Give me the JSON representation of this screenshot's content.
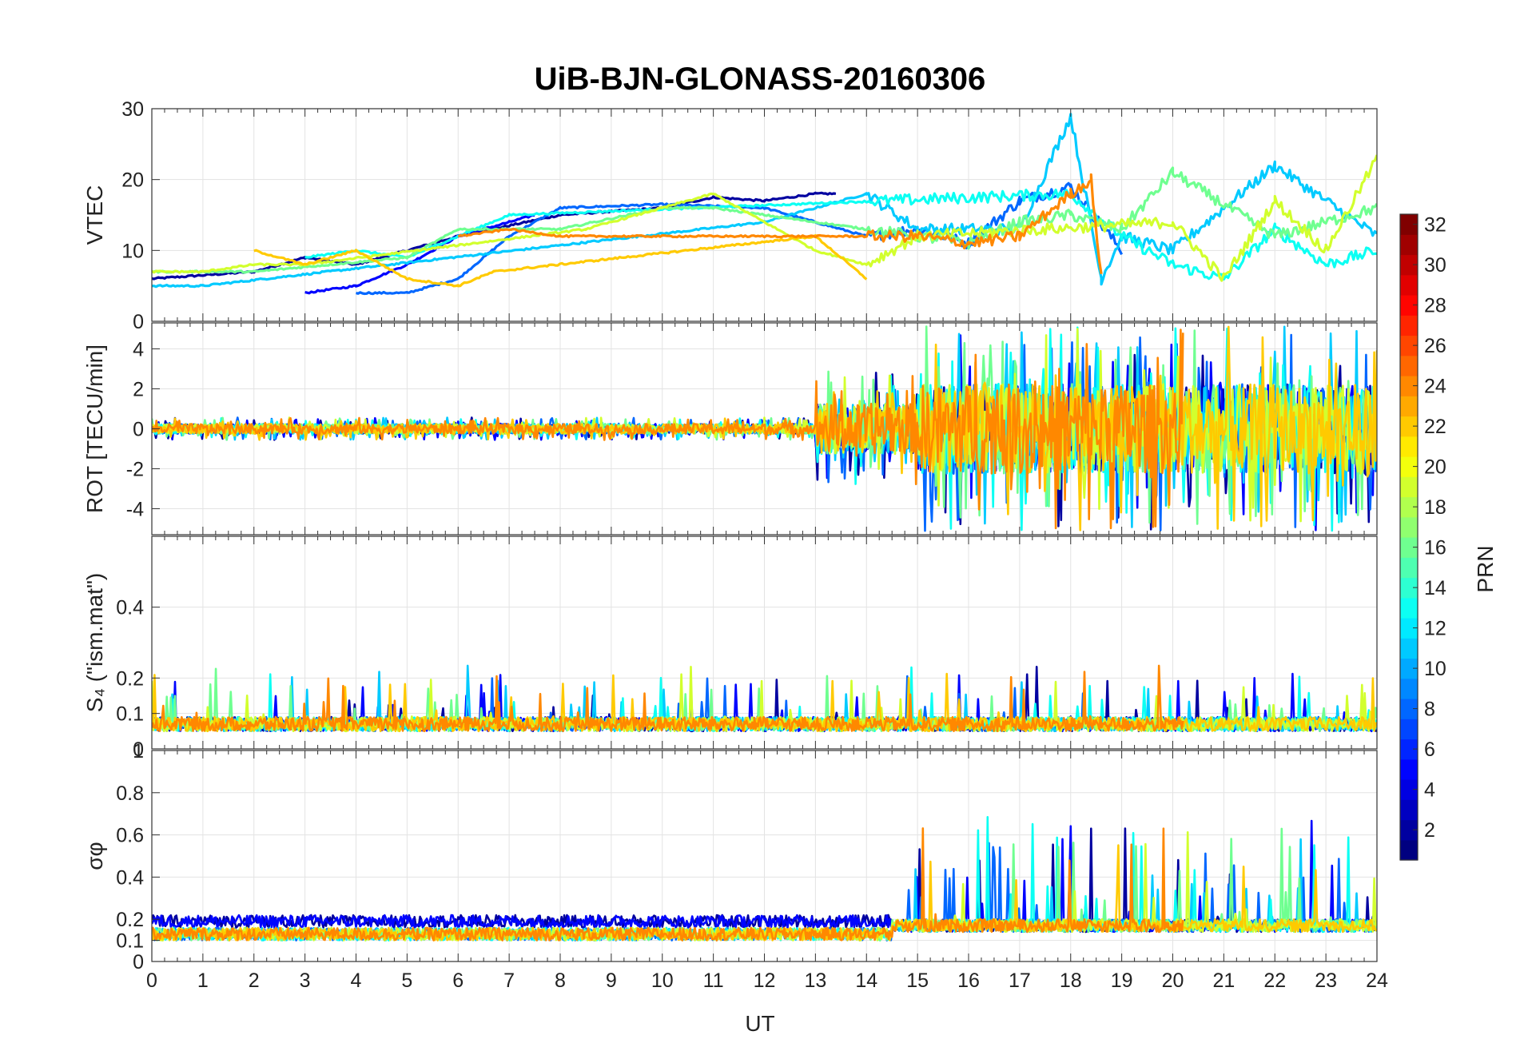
{
  "chart_data": {
    "type": "line",
    "title": "UiB-BJN-GLONASS-20160306",
    "xlabel": "UT",
    "xlim": [
      0,
      24
    ],
    "x_ticks": [
      "0",
      "1",
      "2",
      "3",
      "4",
      "5",
      "6",
      "7",
      "8",
      "9",
      "10",
      "11",
      "12",
      "13",
      "14",
      "15",
      "16",
      "17",
      "18",
      "19",
      "20",
      "21",
      "22",
      "23",
      "24"
    ],
    "grid": true,
    "colormap": "jet",
    "colorbar": {
      "label": "PRN",
      "range": [
        1,
        32
      ],
      "ticks": [
        "2",
        "4",
        "6",
        "8",
        "10",
        "12",
        "14",
        "16",
        "18",
        "20",
        "22",
        "24",
        "26",
        "28",
        "30",
        "32"
      ],
      "placement": "right"
    },
    "panels": [
      {
        "id": "vtec",
        "ylabel": "VTEC",
        "ylim": [
          0,
          30
        ],
        "y_ticks": [
          "0",
          "10",
          "20",
          "30"
        ],
        "description_of_series": "multiple PRN traces",
        "series": [
          {
            "prn": 2,
            "x": [
              0,
              2,
              3,
              4,
              6,
              8,
              10,
              11,
              12,
              13,
              13.4
            ],
            "y": [
              6,
              7,
              9,
              8,
              12,
              15,
              16,
              17.5,
              17,
              18,
              18
            ]
          },
          {
            "prn": 5,
            "x": [
              3,
              4,
              5,
              6,
              7,
              7.5
            ],
            "y": [
              4,
              5,
              8,
              12,
              14,
              15
            ]
          },
          {
            "prn": 8,
            "x": [
              4,
              5,
              6,
              7,
              8,
              10,
              12,
              14,
              15,
              16,
              17,
              18,
              19
            ],
            "y": [
              4,
              4,
              6,
              12,
              16,
              16.5,
              16,
              12,
              13,
              11,
              17,
              19,
              10
            ]
          },
          {
            "prn": 11,
            "x": [
              0,
              1,
              12,
              14,
              15,
              17,
              18,
              18.6,
              19,
              20,
              22,
              24
            ],
            "y": [
              5,
              5,
              14,
              18,
              13,
              13,
              29,
              6,
              12,
              10,
              22,
              12
            ]
          },
          {
            "prn": 13,
            "x": [
              3,
              4,
              5,
              6,
              7,
              18,
              19,
              20,
              21,
              22,
              23,
              24
            ],
            "y": [
              9,
              10,
              9,
              12,
              15,
              18,
              12,
              8,
              6,
              13,
              8,
              10
            ]
          },
          {
            "prn": 16,
            "x": [
              0,
              2,
              5,
              6,
              8,
              10,
              11,
              15,
              16,
              17,
              18,
              19,
              20,
              22,
              24
            ],
            "y": [
              7,
              7,
              9,
              13,
              13,
              16,
              16,
              12,
              11,
              14,
              15,
              13,
              21,
              12,
              16
            ]
          },
          {
            "prn": 19,
            "x": [
              0,
              1,
              2,
              3,
              8.5,
              10,
              11,
              12,
              13,
              14,
              15,
              20,
              21,
              22,
              23,
              24
            ],
            "y": [
              7,
              7,
              8,
              8,
              13,
              16,
              18,
              14,
              10,
              8,
              12,
              14,
              6,
              17,
              10,
              23
            ]
          },
          {
            "prn": 22,
            "x": [
              2,
              3,
              4,
              5,
              6,
              6.7,
              13,
              14
            ],
            "y": [
              10,
              8,
              10,
              6,
              5,
              7,
              12,
              6
            ]
          },
          {
            "prn": 24,
            "x": [
              6,
              7,
              8,
              15,
              16,
              17,
              18,
              18.4,
              18.6
            ],
            "y": [
              12,
              13,
              12,
              12,
              11,
              12,
              18,
              20,
              6
            ]
          }
        ]
      },
      {
        "id": "rot",
        "ylabel": "ROT [TECU/min]",
        "ylim": [
          -5.3,
          5.3
        ],
        "y_ticks": [
          "-4",
          "-2",
          "0",
          "2",
          "4"
        ],
        "description_of_series": "multiple PRN traces"
      },
      {
        "id": "s4",
        "ylabel": "S₄ (\"ism.mat\")",
        "ylim": [
          0,
          0.6
        ],
        "y_ticks": [
          "0",
          "0.1",
          "0.2",
          "0.4"
        ],
        "description_of_series": "multiple PRN traces"
      },
      {
        "id": "sigma",
        "ylabel": "σφ",
        "ylim": [
          0,
          1
        ],
        "y_ticks": [
          "0",
          "0.1",
          "0.2",
          "0.4",
          "0.6",
          "0.8",
          "1"
        ],
        "description_of_series": "multiple PRN traces"
      }
    ]
  }
}
